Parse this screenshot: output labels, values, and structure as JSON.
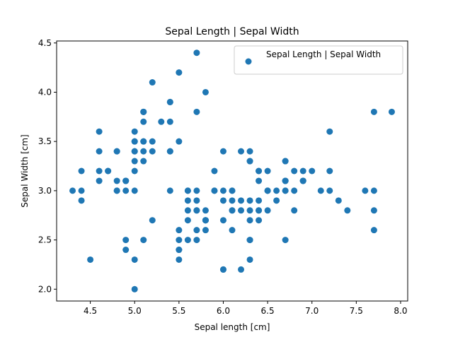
{
  "chart_data": {
    "type": "scatter",
    "title": "Sepal Length | Sepal Width",
    "xlabel": "Sepal length [cm]",
    "ylabel": "Sepal Width [cm]",
    "xlim": [
      4.12,
      8.08
    ],
    "ylim": [
      1.88,
      4.52
    ],
    "xticks": [
      "4.5",
      "5.0",
      "5.5",
      "6.0",
      "6.5",
      "7.0",
      "7.5",
      "8.0"
    ],
    "yticks": [
      "2.0",
      "2.5",
      "3.0",
      "3.5",
      "4.0",
      "4.5"
    ],
    "grid": false,
    "legend_position": "top-right",
    "series": [
      {
        "name": "Sepal Length | Sepal Width",
        "color": "#1f77b4",
        "points": [
          [
            5.1,
            3.5
          ],
          [
            4.9,
            3.0
          ],
          [
            4.7,
            3.2
          ],
          [
            4.6,
            3.1
          ],
          [
            5.0,
            3.6
          ],
          [
            5.4,
            3.9
          ],
          [
            4.6,
            3.4
          ],
          [
            5.0,
            3.4
          ],
          [
            4.4,
            2.9
          ],
          [
            4.9,
            3.1
          ],
          [
            5.4,
            3.7
          ],
          [
            4.8,
            3.4
          ],
          [
            4.8,
            3.0
          ],
          [
            4.3,
            3.0
          ],
          [
            5.8,
            4.0
          ],
          [
            5.7,
            4.4
          ],
          [
            5.4,
            3.9
          ],
          [
            5.1,
            3.5
          ],
          [
            5.7,
            3.8
          ],
          [
            5.1,
            3.8
          ],
          [
            5.4,
            3.4
          ],
          [
            5.1,
            3.7
          ],
          [
            4.6,
            3.6
          ],
          [
            5.1,
            3.3
          ],
          [
            4.8,
            3.4
          ],
          [
            5.0,
            3.0
          ],
          [
            5.0,
            3.4
          ],
          [
            5.2,
            3.5
          ],
          [
            5.2,
            3.4
          ],
          [
            4.7,
            3.2
          ],
          [
            4.8,
            3.1
          ],
          [
            5.4,
            3.4
          ],
          [
            5.2,
            4.1
          ],
          [
            5.5,
            4.2
          ],
          [
            4.9,
            3.1
          ],
          [
            5.0,
            3.2
          ],
          [
            5.5,
            3.5
          ],
          [
            4.9,
            3.1
          ],
          [
            4.4,
            3.0
          ],
          [
            5.1,
            3.4
          ],
          [
            5.0,
            3.5
          ],
          [
            4.5,
            2.3
          ],
          [
            4.4,
            3.2
          ],
          [
            5.0,
            3.5
          ],
          [
            5.1,
            3.8
          ],
          [
            4.8,
            3.0
          ],
          [
            5.1,
            3.8
          ],
          [
            4.6,
            3.2
          ],
          [
            5.3,
            3.7
          ],
          [
            5.0,
            3.3
          ],
          [
            7.0,
            3.2
          ],
          [
            6.4,
            3.2
          ],
          [
            6.9,
            3.1
          ],
          [
            5.5,
            2.3
          ],
          [
            6.5,
            2.8
          ],
          [
            5.7,
            2.8
          ],
          [
            6.3,
            3.3
          ],
          [
            4.9,
            2.4
          ],
          [
            6.6,
            2.9
          ],
          [
            5.2,
            2.7
          ],
          [
            5.0,
            2.0
          ],
          [
            5.9,
            3.0
          ],
          [
            6.0,
            2.2
          ],
          [
            6.1,
            2.9
          ],
          [
            5.6,
            2.9
          ],
          [
            6.7,
            3.1
          ],
          [
            5.6,
            3.0
          ],
          [
            5.8,
            2.7
          ],
          [
            6.2,
            2.2
          ],
          [
            5.6,
            2.5
          ],
          [
            5.9,
            3.2
          ],
          [
            6.1,
            2.8
          ],
          [
            6.3,
            2.5
          ],
          [
            6.1,
            2.8
          ],
          [
            6.4,
            2.9
          ],
          [
            6.6,
            3.0
          ],
          [
            6.8,
            2.8
          ],
          [
            6.7,
            3.0
          ],
          [
            6.0,
            2.9
          ],
          [
            5.7,
            2.6
          ],
          [
            5.5,
            2.4
          ],
          [
            5.5,
            2.4
          ],
          [
            5.8,
            2.7
          ],
          [
            6.0,
            2.7
          ],
          [
            5.4,
            3.0
          ],
          [
            6.0,
            3.4
          ],
          [
            6.7,
            3.1
          ],
          [
            6.3,
            2.3
          ],
          [
            5.6,
            3.0
          ],
          [
            5.5,
            2.5
          ],
          [
            5.5,
            2.6
          ],
          [
            6.1,
            3.0
          ],
          [
            5.8,
            2.6
          ],
          [
            5.0,
            2.3
          ],
          [
            5.6,
            2.7
          ],
          [
            5.7,
            3.0
          ],
          [
            5.7,
            2.9
          ],
          [
            6.2,
            2.9
          ],
          [
            5.1,
            2.5
          ],
          [
            5.7,
            2.8
          ],
          [
            6.3,
            3.3
          ],
          [
            5.8,
            2.7
          ],
          [
            7.1,
            3.0
          ],
          [
            6.3,
            2.9
          ],
          [
            6.5,
            3.0
          ],
          [
            7.6,
            3.0
          ],
          [
            4.9,
            2.5
          ],
          [
            7.3,
            2.9
          ],
          [
            6.7,
            2.5
          ],
          [
            7.2,
            3.6
          ],
          [
            6.5,
            3.2
          ],
          [
            6.4,
            2.7
          ],
          [
            6.8,
            3.0
          ],
          [
            5.7,
            2.5
          ],
          [
            5.8,
            2.8
          ],
          [
            6.4,
            3.2
          ],
          [
            6.5,
            3.0
          ],
          [
            7.7,
            3.8
          ],
          [
            7.7,
            2.6
          ],
          [
            6.0,
            2.2
          ],
          [
            6.9,
            3.2
          ],
          [
            5.6,
            2.8
          ],
          [
            7.7,
            2.8
          ],
          [
            6.3,
            2.7
          ],
          [
            6.7,
            3.3
          ],
          [
            7.2,
            3.2
          ],
          [
            6.2,
            2.8
          ],
          [
            6.1,
            3.0
          ],
          [
            6.4,
            2.8
          ],
          [
            7.2,
            3.0
          ],
          [
            7.4,
            2.8
          ],
          [
            7.9,
            3.8
          ],
          [
            6.4,
            2.8
          ],
          [
            6.3,
            2.8
          ],
          [
            6.1,
            2.6
          ],
          [
            7.7,
            3.0
          ],
          [
            6.3,
            3.4
          ],
          [
            6.4,
            3.1
          ],
          [
            6.0,
            3.0
          ],
          [
            6.9,
            3.1
          ],
          [
            6.7,
            3.1
          ],
          [
            6.9,
            3.1
          ],
          [
            5.8,
            2.7
          ],
          [
            6.8,
            3.2
          ],
          [
            6.7,
            3.3
          ],
          [
            6.7,
            3.0
          ],
          [
            6.3,
            2.5
          ],
          [
            6.5,
            3.0
          ],
          [
            6.2,
            3.4
          ],
          [
            5.9,
            3.0
          ]
        ]
      }
    ]
  }
}
